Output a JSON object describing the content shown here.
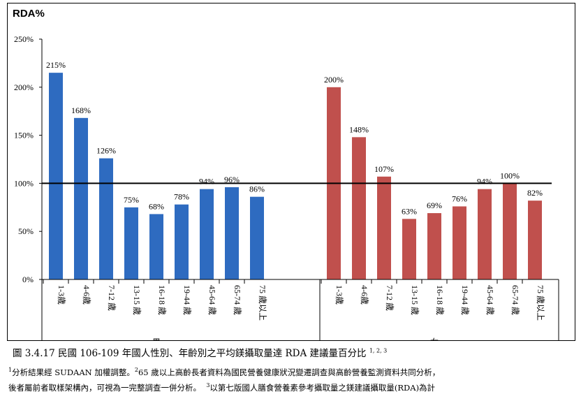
{
  "chart_data": {
    "type": "bar",
    "ylabel": "RDA%",
    "ylim": [
      0,
      250
    ],
    "yticks": [
      "0%",
      "50%",
      "100%",
      "150%",
      "200%",
      "250%"
    ],
    "reference_line": 100,
    "groups": [
      {
        "name": "男",
        "color": "#2e6bc0",
        "categories": [
          "1-3歲",
          "4-6歲",
          "7-12 歲",
          "13-15 歲",
          "16-18 歲",
          "19-44 歲",
          "45-64 歲",
          "65-74 歲",
          "75 歲以上"
        ],
        "values": [
          215,
          168,
          126,
          75,
          68,
          78,
          94,
          96,
          86
        ],
        "labels": [
          "215%",
          "168%",
          "126%",
          "75%",
          "68%",
          "78%",
          "94%",
          "96%",
          "86%"
        ]
      },
      {
        "name": "女",
        "color": "#c0504d",
        "categories": [
          "1-3歲",
          "4-6歲",
          "7-12 歲",
          "13-15 歲",
          "16-18 歲",
          "19-44 歲",
          "45-64 歲",
          "65-74 歲",
          "75 歲以上"
        ],
        "values": [
          200,
          148,
          107,
          63,
          69,
          76,
          94,
          100,
          82
        ],
        "labels": [
          "200%",
          "148%",
          "107%",
          "63%",
          "69%",
          "76%",
          "94%",
          "100%",
          "82%"
        ]
      }
    ]
  },
  "caption": {
    "text": "圖 3.4.17 民國 106-109 年國人性別、年齡別之平均鎂攝取量達 RDA 建議量百分比",
    "sup": "1, 2, 3"
  },
  "notes": {
    "n1_mark": "1",
    "n1_text": "分析結果經 SUDAAN 加權調整。",
    "n2_mark": "2",
    "n2_text": "65 歲以上高齡長者資料為國民營養健康狀況變遷調查與高齡營養監測資料共同分析，",
    "n2_cont": "後者屬前者取樣架構內，可視為一完整調查一併分析。",
    "n3_mark": "3",
    "n3_text": "以第七版國人膳食營養素參考攝取量之鎂建議攝取量(RDA)為計"
  }
}
